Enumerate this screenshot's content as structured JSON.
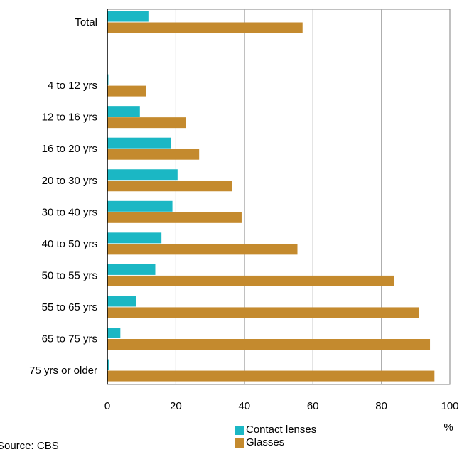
{
  "chart_data": {
    "type": "bar",
    "orientation": "horizontal",
    "categories": [
      "Total",
      "",
      "4 to 12 yrs",
      "12 to 16 yrs",
      "16 to 20 yrs",
      "20 to 30 yrs",
      "30 to 40 yrs",
      "40 to 50 yrs",
      "50 to 55 yrs",
      "55 to 65 yrs",
      "65 to 75 yrs",
      "75 yrs or older"
    ],
    "series": [
      {
        "name": "Contact lenses",
        "color": "#1bb7c4",
        "values": [
          12,
          null,
          0.3,
          9.5,
          18.5,
          20.5,
          19,
          15.8,
          14,
          8.3,
          3.8,
          0.4
        ]
      },
      {
        "name": "Glasses",
        "color": "#c48a2e",
        "values": [
          57,
          null,
          11.3,
          23,
          26.8,
          36.5,
          39.2,
          55.5,
          83.8,
          91,
          94.2,
          95.5
        ]
      }
    ],
    "xlim": [
      0,
      100
    ],
    "xticks": [
      0,
      20,
      40,
      60,
      80,
      100
    ],
    "x_unit_label": "%",
    "grid": true,
    "legend_position": "bottom"
  },
  "source_text": "Source: CBS"
}
